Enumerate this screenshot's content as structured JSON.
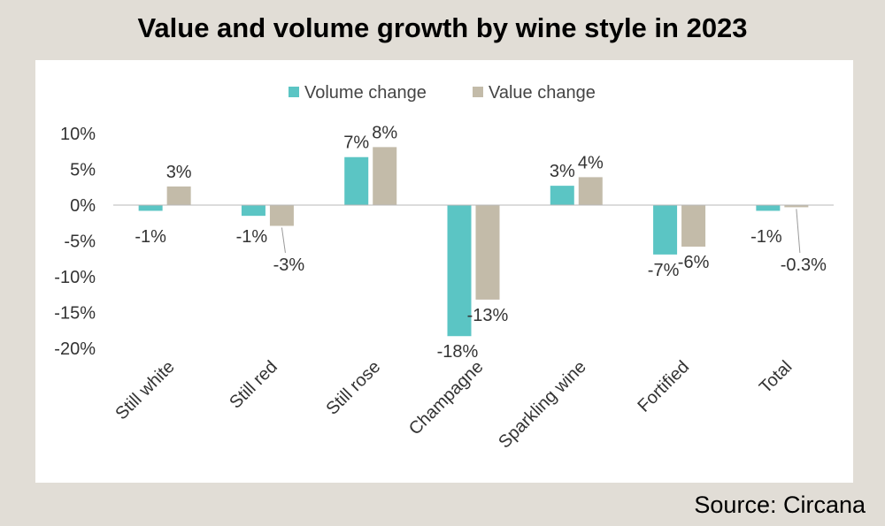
{
  "title": "Value and volume growth by wine style in 2023",
  "source": "Source: Circana",
  "chart_data": {
    "type": "bar",
    "title": "Value and volume growth by wine style in 2023",
    "xlabel": "",
    "ylabel": "",
    "categories": [
      "Still white",
      "Still red",
      "Still rose",
      "Champagne",
      "Sparkling wine",
      "Fortified",
      "Total"
    ],
    "series": [
      {
        "name": "Volume change",
        "color": "#5bc5c4",
        "values": [
          -0.8,
          -1.5,
          6.7,
          -18.3,
          2.7,
          -6.9,
          -0.8
        ],
        "labels": [
          "-1%",
          "-1%",
          "7%",
          "-18%",
          "3%",
          "-7%",
          "-1%"
        ]
      },
      {
        "name": "Value change",
        "color": "#c3bba9",
        "values": [
          2.6,
          -2.9,
          8.1,
          -13.2,
          3.9,
          -5.8,
          -0.3
        ],
        "labels": [
          "3%",
          "-3%",
          "8%",
          "-13%",
          "4%",
          "-6%",
          "-0.3%"
        ]
      }
    ],
    "ylim": [
      -20,
      10
    ],
    "yticks": [
      10,
      5,
      0,
      -5,
      -10,
      -15,
      -20
    ],
    "ytick_labels": [
      "10%",
      "5%",
      "0%",
      "-5%",
      "-10%",
      "-15%",
      "-20%"
    ],
    "grid": false,
    "legend": "top-center"
  }
}
